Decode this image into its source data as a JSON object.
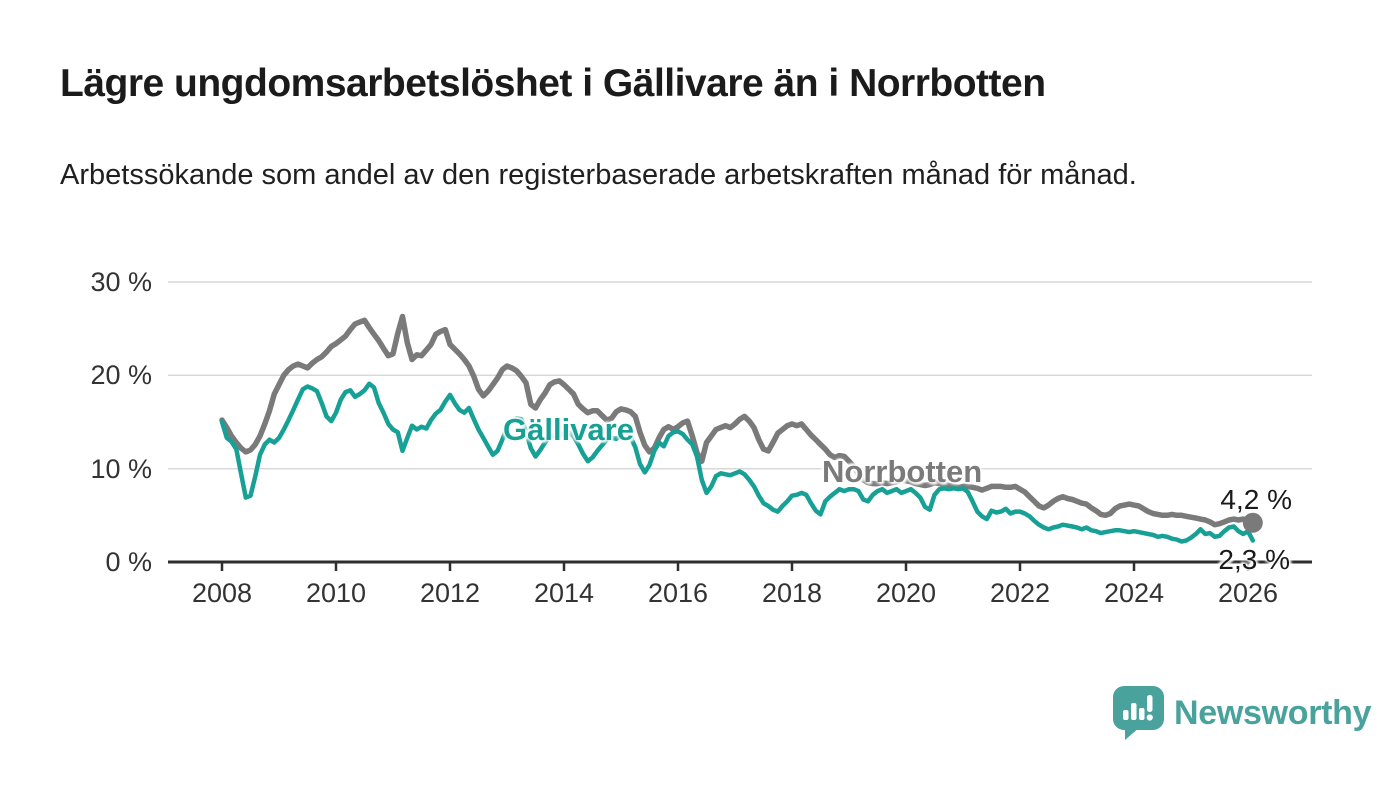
{
  "title": "Lägre ungdomsarbetslöshet i Gällivare än i Norrbotten",
  "subtitle": "Arbetssökande som andel av den registerbaserade arbetskraften månad för månad.",
  "branding": {
    "logo_text": "Newsworthy",
    "logo_color": "#4aa29c"
  },
  "chart_data": {
    "type": "line",
    "title": "Lägre ungdomsarbetslöshet i Gällivare än i Norrbotten",
    "subtitle": "Arbetssökande som andel av den registerbaserade arbetskraften månad för månad.",
    "unit": "%",
    "x_monthly_start": "2008-01",
    "x_monthly_end": "2026-02",
    "x_tick_labels": [
      "2008",
      "2010",
      "2012",
      "2014",
      "2016",
      "2018",
      "2020",
      "2022",
      "2024",
      "2026"
    ],
    "y_tick_labels": [
      "0 %",
      "10 %",
      "20 %",
      "30 %"
    ],
    "ylim": [
      0,
      30
    ],
    "grid": true,
    "legend": "inline-labels",
    "series": [
      {
        "name": "Gällivare",
        "color": "#17a096",
        "end_label": "2,3 %",
        "end_value": 2.3,
        "end_dot": false,
        "values": [
          15.0,
          13.3,
          12.9,
          12.1,
          9.5,
          6.9,
          7.1,
          9.2,
          11.5,
          12.6,
          13.1,
          12.8,
          13.3,
          14.2,
          15.2,
          16.3,
          17.4,
          18.5,
          18.8,
          18.6,
          18.3,
          17.0,
          15.6,
          15.1,
          16.0,
          17.4,
          18.2,
          18.4,
          17.7,
          18.0,
          18.4,
          19.1,
          18.7,
          17.0,
          16.0,
          14.8,
          14.2,
          13.9,
          11.9,
          13.3,
          14.6,
          14.2,
          14.5,
          14.3,
          15.2,
          15.9,
          16.3,
          17.2,
          17.9,
          17.0,
          16.3,
          16.0,
          16.5,
          15.3,
          14.2,
          13.3,
          12.4,
          11.5,
          11.9,
          13.1,
          14.4,
          15.1,
          15.4,
          15.3,
          14.0,
          12.2,
          11.3,
          12.0,
          12.8,
          13.4,
          13.6,
          13.5,
          13.8,
          13.9,
          13.5,
          12.6,
          11.6,
          10.8,
          11.2,
          11.9,
          12.5,
          13.1,
          13.3,
          13.2,
          13.6,
          13.8,
          13.4,
          12.3,
          10.5,
          9.6,
          10.4,
          11.9,
          12.8,
          12.4,
          13.5,
          13.9,
          14.0,
          13.7,
          13.1,
          12.6,
          11.3,
          8.8,
          7.4,
          8.1,
          9.2,
          9.5,
          9.4,
          9.3,
          9.5,
          9.7,
          9.4,
          8.8,
          8.1,
          7.1,
          6.3,
          6.0,
          5.6,
          5.4,
          6.0,
          6.5,
          7.1,
          7.2,
          7.4,
          7.2,
          6.3,
          5.5,
          5.1,
          6.5,
          7.0,
          7.4,
          7.8,
          7.6,
          7.8,
          7.8,
          7.6,
          6.7,
          6.5,
          7.2,
          7.6,
          7.8,
          7.4,
          7.6,
          7.8,
          7.4,
          7.6,
          7.8,
          7.4,
          6.9,
          5.9,
          5.6,
          7.2,
          7.8,
          7.9,
          7.8,
          7.9,
          7.8,
          7.9,
          7.5,
          6.5,
          5.4,
          4.9,
          4.6,
          5.5,
          5.3,
          5.4,
          5.7,
          5.2,
          5.4,
          5.4,
          5.2,
          4.9,
          4.4,
          4.0,
          3.7,
          3.5,
          3.7,
          3.8,
          4.0,
          3.9,
          3.8,
          3.7,
          3.5,
          3.7,
          3.4,
          3.3,
          3.1,
          3.2,
          3.3,
          3.4,
          3.4,
          3.3,
          3.2,
          3.3,
          3.2,
          3.1,
          3.0,
          2.9,
          2.7,
          2.8,
          2.7,
          2.5,
          2.4,
          2.2,
          2.3,
          2.6,
          3.0,
          3.5,
          3.0,
          3.1,
          2.7,
          2.8,
          3.3,
          3.7,
          3.8,
          3.3,
          3.0,
          3.3,
          2.3
        ]
      },
      {
        "name": "Norrbotten",
        "color": "#7a7a7a",
        "end_label": "4,2 %",
        "end_value": 4.2,
        "end_dot": true,
        "values": [
          15.2,
          14.4,
          13.5,
          12.8,
          12.2,
          11.8,
          12.0,
          12.6,
          13.5,
          14.8,
          16.2,
          18.0,
          19.0,
          20.0,
          20.6,
          21.0,
          21.2,
          21.0,
          20.8,
          21.3,
          21.7,
          22.0,
          22.5,
          23.1,
          23.4,
          23.8,
          24.2,
          24.9,
          25.5,
          25.7,
          25.9,
          25.1,
          24.4,
          23.7,
          22.9,
          22.1,
          22.3,
          24.5,
          26.3,
          23.5,
          21.7,
          22.2,
          22.1,
          22.7,
          23.3,
          24.4,
          24.7,
          24.9,
          23.3,
          22.8,
          22.3,
          21.7,
          21.0,
          19.9,
          18.5,
          17.8,
          18.3,
          19.0,
          19.7,
          20.6,
          21.0,
          20.8,
          20.5,
          19.9,
          19.2,
          16.9,
          16.5,
          17.4,
          18.1,
          19.0,
          19.3,
          19.4,
          19.0,
          18.5,
          18.0,
          16.9,
          16.4,
          16.0,
          16.2,
          16.2,
          15.7,
          15.2,
          15.4,
          16.1,
          16.4,
          16.3,
          16.1,
          15.6,
          13.9,
          12.5,
          11.8,
          12.2,
          13.3,
          14.2,
          14.5,
          14.2,
          14.5,
          14.9,
          15.1,
          13.5,
          11.7,
          10.8,
          12.8,
          13.5,
          14.2,
          14.4,
          14.6,
          14.4,
          14.8,
          15.3,
          15.6,
          15.1,
          14.4,
          13.1,
          12.1,
          11.9,
          12.8,
          13.8,
          14.2,
          14.6,
          14.8,
          14.6,
          14.8,
          14.2,
          13.6,
          13.1,
          12.6,
          12.1,
          11.5,
          11.2,
          11.4,
          11.3,
          10.8,
          10.2,
          9.4,
          8.8,
          8.5,
          8.4,
          8.4,
          8.5,
          8.4,
          8.5,
          8.6,
          8.8,
          8.7,
          8.6,
          8.4,
          8.3,
          8.2,
          8.3,
          8.5,
          8.4,
          8.3,
          8.2,
          8.1,
          8.0,
          8.1,
          8.1,
          8.0,
          7.9,
          7.7,
          7.9,
          8.1,
          8.1,
          8.1,
          8.0,
          8.0,
          8.1,
          7.8,
          7.5,
          7.0,
          6.5,
          6.0,
          5.8,
          6.1,
          6.5,
          6.8,
          7.0,
          6.8,
          6.7,
          6.5,
          6.3,
          6.2,
          5.8,
          5.5,
          5.1,
          5.0,
          5.2,
          5.7,
          6.0,
          6.1,
          6.2,
          6.1,
          6.0,
          5.7,
          5.4,
          5.2,
          5.1,
          5.0,
          5.0,
          5.1,
          5.0,
          5.0,
          4.9,
          4.8,
          4.7,
          4.6,
          4.5,
          4.3,
          4.0,
          4.1,
          4.3,
          4.5,
          4.6,
          4.5,
          4.6,
          4.5,
          4.2
        ]
      }
    ]
  }
}
